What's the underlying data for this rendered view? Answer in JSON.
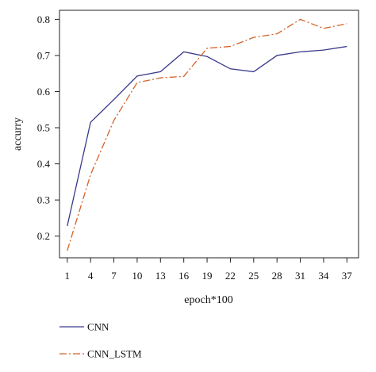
{
  "chart_data": {
    "type": "line",
    "xlabel": "epoch*100",
    "ylabel": "accurry",
    "x": [
      1,
      4,
      7,
      10,
      13,
      16,
      19,
      22,
      25,
      28,
      31,
      34,
      37
    ],
    "xticks": [
      "1",
      "4",
      "7",
      "10",
      "13",
      "16",
      "19",
      "22",
      "25",
      "28",
      "31",
      "34",
      "37"
    ],
    "yticks": [
      "0.2",
      "0.3",
      "0.4",
      "0.5",
      "0.6",
      "0.7",
      "0.8"
    ],
    "ytick_values": [
      0.2,
      0.3,
      0.4,
      0.5,
      0.6,
      0.7,
      0.8
    ],
    "xlim": [
      0,
      38.5
    ],
    "ylim": [
      0.14,
      0.825
    ],
    "grid": false,
    "legend_position": "bottom",
    "series": [
      {
        "name": "CNN",
        "color": "#3a3a8c",
        "style": "solid",
        "values": [
          0.228,
          0.515,
          0.578,
          0.643,
          0.655,
          0.71,
          0.697,
          0.663,
          0.655,
          0.7,
          0.71,
          0.715,
          0.725
        ]
      },
      {
        "name": "CNN_LSTM",
        "color": "#d4622a",
        "style": "dashdot",
        "values": [
          0.16,
          0.37,
          0.52,
          0.625,
          0.638,
          0.642,
          0.72,
          0.725,
          0.75,
          0.76,
          0.8,
          0.775,
          0.788
        ]
      }
    ]
  }
}
